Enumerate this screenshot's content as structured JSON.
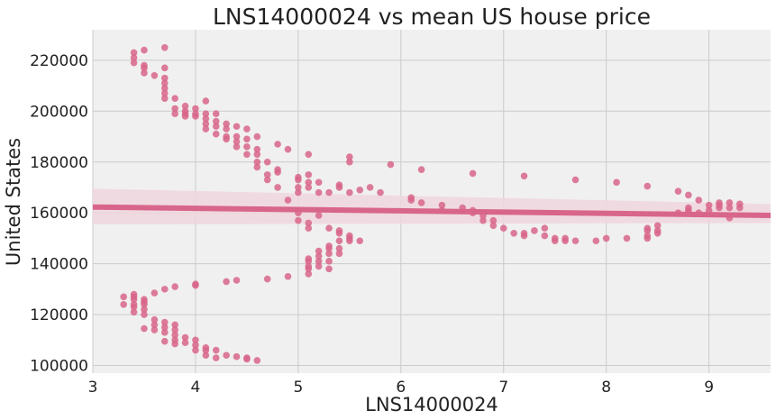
{
  "chart_data": {
    "type": "scatter",
    "title": "LNS14000024 vs mean US house price",
    "xlabel": "LNS14000024",
    "ylabel": "United States",
    "xlim": [
      3.0,
      9.6
    ],
    "ylim": [
      97000,
      232000
    ],
    "xticks": [
      3,
      4,
      5,
      6,
      7,
      8,
      9
    ],
    "yticks": [
      100000,
      120000,
      140000,
      160000,
      180000,
      200000,
      220000
    ],
    "grid": true,
    "legend": "none",
    "colors": {
      "points": "#d8668a",
      "regression": "#d8668a",
      "ci_band": "#f0d6de",
      "plot_bg": "#f0f0f0",
      "grid": "#cbcbcb"
    },
    "regression": {
      "x": [
        3.0,
        9.6
      ],
      "y": [
        162300,
        159000
      ],
      "ci_lower": [
        155500,
        156000
      ],
      "ci_upper": [
        169500,
        163500
      ]
    },
    "points": [
      [
        3.4,
        223000
      ],
      [
        3.4,
        221000
      ],
      [
        3.4,
        219000
      ],
      [
        3.5,
        224000
      ],
      [
        3.5,
        218000
      ],
      [
        3.5,
        217000
      ],
      [
        3.5,
        215000
      ],
      [
        3.6,
        214000
      ],
      [
        3.7,
        225000
      ],
      [
        3.7,
        217000
      ],
      [
        3.7,
        213000
      ],
      [
        3.7,
        211000
      ],
      [
        3.7,
        209000
      ],
      [
        3.7,
        207000
      ],
      [
        3.7,
        205000
      ],
      [
        3.8,
        205000
      ],
      [
        3.8,
        201000
      ],
      [
        3.8,
        199000
      ],
      [
        3.9,
        202000
      ],
      [
        3.9,
        200000
      ],
      [
        3.9,
        199000
      ],
      [
        3.9,
        198000
      ],
      [
        4.0,
        201000
      ],
      [
        4.0,
        199000
      ],
      [
        4.0,
        198000
      ],
      [
        4.1,
        204000
      ],
      [
        4.1,
        199000
      ],
      [
        4.1,
        197000
      ],
      [
        4.1,
        195000
      ],
      [
        4.1,
        193000
      ],
      [
        4.2,
        199000
      ],
      [
        4.2,
        196000
      ],
      [
        4.2,
        194000
      ],
      [
        4.2,
        191000
      ],
      [
        4.3,
        195000
      ],
      [
        4.3,
        193000
      ],
      [
        4.3,
        190000
      ],
      [
        4.3,
        189000
      ],
      [
        4.4,
        194000
      ],
      [
        4.4,
        190000
      ],
      [
        4.4,
        188000
      ],
      [
        4.4,
        186000
      ],
      [
        4.5,
        193000
      ],
      [
        4.5,
        189000
      ],
      [
        4.5,
        186000
      ],
      [
        4.5,
        183000
      ],
      [
        4.6,
        190000
      ],
      [
        4.6,
        185000
      ],
      [
        4.6,
        183000
      ],
      [
        4.6,
        180000
      ],
      [
        4.6,
        178000
      ],
      [
        4.7,
        180000
      ],
      [
        4.7,
        175000
      ],
      [
        4.7,
        173000
      ],
      [
        4.8,
        187000
      ],
      [
        4.8,
        177000
      ],
      [
        4.8,
        176000
      ],
      [
        4.8,
        170000
      ],
      [
        4.9,
        185000
      ],
      [
        4.9,
        165000
      ],
      [
        5.0,
        174000
      ],
      [
        5.0,
        173000
      ],
      [
        5.0,
        170000
      ],
      [
        5.0,
        168000
      ],
      [
        5.1,
        183000
      ],
      [
        5.1,
        175000
      ],
      [
        5.1,
        172000
      ],
      [
        5.1,
        170000
      ],
      [
        5.2,
        172000
      ],
      [
        5.2,
        168000
      ],
      [
        5.3,
        168000
      ],
      [
        5.4,
        171000
      ],
      [
        5.4,
        170000
      ],
      [
        5.5,
        182000
      ],
      [
        5.5,
        180000
      ],
      [
        5.5,
        168000
      ],
      [
        5.6,
        169000
      ],
      [
        5.7,
        170000
      ],
      [
        5.8,
        168000
      ],
      [
        5.9,
        179000
      ],
      [
        6.1,
        165000
      ],
      [
        6.2,
        177000
      ],
      [
        6.2,
        164000
      ],
      [
        6.4,
        163000
      ],
      [
        6.7,
        175500
      ],
      [
        7.2,
        174500
      ],
      [
        7.7,
        173000
      ],
      [
        8.1,
        172000
      ],
      [
        8.4,
        170500
      ],
      [
        8.7,
        168500
      ],
      [
        8.8,
        167000
      ],
      [
        8.9,
        165000
      ],
      [
        9.0,
        163000
      ],
      [
        9.1,
        164000
      ],
      [
        9.1,
        163000
      ],
      [
        9.2,
        164000
      ],
      [
        9.2,
        162000
      ],
      [
        9.3,
        163500
      ],
      [
        9.3,
        162000
      ],
      [
        5.0,
        160000
      ],
      [
        5.0,
        157000
      ],
      [
        5.1,
        156000
      ],
      [
        5.1,
        154000
      ],
      [
        5.2,
        159000
      ],
      [
        5.3,
        154000
      ],
      [
        5.4,
        153000
      ],
      [
        5.4,
        152000
      ],
      [
        5.5,
        150000
      ],
      [
        5.6,
        149000
      ],
      [
        6.1,
        166000
      ],
      [
        6.4,
        161000
      ],
      [
        6.6,
        162000
      ],
      [
        6.7,
        161000
      ],
      [
        6.7,
        160000
      ],
      [
        6.8,
        159000
      ],
      [
        6.8,
        157000
      ],
      [
        6.9,
        157000
      ],
      [
        6.9,
        155000
      ],
      [
        7.0,
        154000
      ],
      [
        7.1,
        152000
      ],
      [
        7.2,
        151000
      ],
      [
        7.2,
        152000
      ],
      [
        7.3,
        153000
      ],
      [
        7.4,
        154000
      ],
      [
        7.4,
        151000
      ],
      [
        7.5,
        149000
      ],
      [
        7.5,
        150000
      ],
      [
        7.6,
        150000
      ],
      [
        7.6,
        149000
      ],
      [
        7.7,
        149000
      ],
      [
        7.9,
        149000
      ],
      [
        8.0,
        150000
      ],
      [
        8.2,
        150000
      ],
      [
        8.4,
        154000
      ],
      [
        8.4,
        153000
      ],
      [
        8.4,
        151000
      ],
      [
        8.4,
        150000
      ],
      [
        8.5,
        155000
      ],
      [
        8.5,
        153000
      ],
      [
        8.5,
        152000
      ],
      [
        8.7,
        160000
      ],
      [
        8.8,
        162000
      ],
      [
        8.8,
        161000
      ],
      [
        8.8,
        160000
      ],
      [
        8.9,
        160000
      ],
      [
        9.0,
        161000
      ],
      [
        9.1,
        162000
      ],
      [
        9.2,
        158000
      ],
      [
        5.1,
        142000
      ],
      [
        5.1,
        141000
      ],
      [
        5.1,
        139000
      ],
      [
        5.1,
        138000
      ],
      [
        5.1,
        136000
      ],
      [
        5.2,
        145000
      ],
      [
        5.2,
        143000
      ],
      [
        5.2,
        141000
      ],
      [
        5.2,
        139000
      ],
      [
        5.3,
        147000
      ],
      [
        5.3,
        146000
      ],
      [
        5.3,
        144000
      ],
      [
        5.3,
        141000
      ],
      [
        5.3,
        138000
      ],
      [
        5.4,
        149000
      ],
      [
        5.4,
        146000
      ],
      [
        5.4,
        144000
      ],
      [
        5.5,
        151000
      ],
      [
        5.5,
        149000
      ],
      [
        4.9,
        135000
      ],
      [
        4.7,
        134000
      ],
      [
        4.4,
        133500
      ],
      [
        4.3,
        133000
      ],
      [
        4.0,
        132000
      ],
      [
        4.0,
        131500
      ],
      [
        3.7,
        130000
      ],
      [
        3.8,
        131000
      ],
      [
        3.6,
        128500
      ],
      [
        3.3,
        127000
      ],
      [
        3.4,
        128000
      ],
      [
        3.4,
        127000
      ],
      [
        3.4,
        126000
      ],
      [
        3.3,
        124000
      ],
      [
        3.4,
        124000
      ],
      [
        3.4,
        123000
      ],
      [
        3.4,
        121000
      ],
      [
        3.5,
        126000
      ],
      [
        3.5,
        125000
      ],
      [
        3.5,
        124000
      ],
      [
        3.5,
        122000
      ],
      [
        3.5,
        120000
      ],
      [
        3.6,
        118000
      ],
      [
        3.6,
        116000
      ],
      [
        3.5,
        114500
      ],
      [
        3.6,
        114000
      ],
      [
        3.7,
        117000
      ],
      [
        3.7,
        115000
      ],
      [
        3.7,
        113000
      ],
      [
        3.8,
        116000
      ],
      [
        3.8,
        114000
      ],
      [
        3.8,
        112000
      ],
      [
        3.8,
        110000
      ],
      [
        3.7,
        109500
      ],
      [
        3.8,
        108500
      ],
      [
        3.9,
        111000
      ],
      [
        3.9,
        109000
      ],
      [
        4.0,
        110000
      ],
      [
        4.0,
        108000
      ],
      [
        4.0,
        106000
      ],
      [
        4.1,
        107000
      ],
      [
        4.1,
        106000
      ],
      [
        4.1,
        104000
      ],
      [
        4.2,
        106000
      ],
      [
        4.2,
        103000
      ],
      [
        4.3,
        104000
      ],
      [
        4.4,
        103500
      ],
      [
        4.5,
        103000
      ],
      [
        4.5,
        102500
      ],
      [
        4.6,
        102000
      ]
    ]
  }
}
